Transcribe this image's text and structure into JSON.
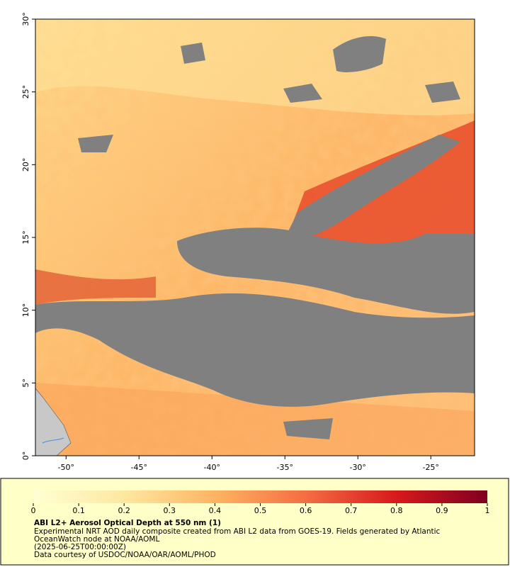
{
  "map": {
    "xlim": [
      -52.1,
      -22
    ],
    "ylim": [
      0,
      30
    ],
    "xticks": [
      {
        "value": -50,
        "label": "-50°"
      },
      {
        "value": -45,
        "label": "-45°"
      },
      {
        "value": -40,
        "label": "-40°"
      },
      {
        "value": -35,
        "label": "-35°"
      },
      {
        "value": -30,
        "label": "-30°"
      },
      {
        "value": -25,
        "label": "-25°"
      }
    ],
    "yticks": [
      {
        "value": 0,
        "label": "0°"
      },
      {
        "value": 5,
        "label": "5°"
      },
      {
        "value": 10,
        "label": "10°"
      },
      {
        "value": 15,
        "label": "15°"
      },
      {
        "value": 20,
        "label": "20°"
      },
      {
        "value": 25,
        "label": "25°"
      },
      {
        "value": 30,
        "label": "30°"
      }
    ]
  },
  "colorbar": {
    "lim": [
      0,
      1
    ],
    "ticks": [
      0,
      0.1,
      0.2,
      0.3,
      0.4,
      0.5,
      0.6,
      0.7,
      0.8,
      0.9,
      1
    ]
  },
  "caption": {
    "title": "ABI L2+ Aerosol Optical Depth at 550 nm (1)",
    "lines": [
      "Experimental NRT AOD daily composite created from ABI L2 data from GOES-19. Fields generated by Atlantic",
      "OceanWatch node at NOAA/AOML",
      "(2025-06-25T00:00:00Z)",
      "Data courtesy of USDOC/NOAA/OAR/AOML/PHOD"
    ]
  }
}
